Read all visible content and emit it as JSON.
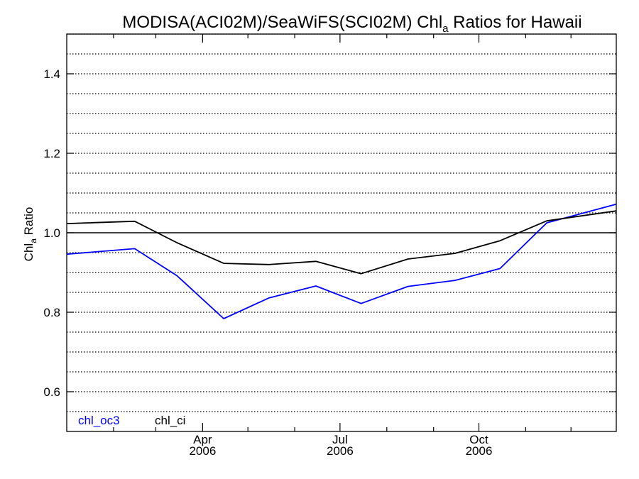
{
  "chart_data": {
    "type": "line",
    "title": {
      "main": "MODISA(ACI02M)/SeaWiFS(SCI02M)  Chl",
      "sub": "a",
      "rest": " Ratios for Hawaii"
    },
    "ylabel": {
      "main": "Chl",
      "sub": "a",
      "rest": " Ratio"
    },
    "xlabel": "",
    "xlim": [
      "2006-01-01",
      "2006-12-31"
    ],
    "ylim": [
      0.5,
      1.5
    ],
    "yticks": [
      0.6,
      0.8,
      1.0,
      1.2,
      1.4
    ],
    "ytick_labels": [
      "0.6",
      "0.8",
      "1.0",
      "1.2",
      "1.4"
    ],
    "xticks_major": [
      {
        "date": "2006-04-01",
        "month": "Apr",
        "year": "2006"
      },
      {
        "date": "2006-07-01",
        "month": "Jul",
        "year": "2006"
      },
      {
        "date": "2006-10-01",
        "month": "Oct",
        "year": "2006"
      }
    ],
    "xticks_minor": [
      "2006-02-01",
      "2006-03-01",
      "2006-05-01",
      "2006-06-01",
      "2006-08-01",
      "2006-09-01",
      "2006-11-01",
      "2006-12-01"
    ],
    "gridlines_y": [
      0.55,
      0.6,
      0.65,
      0.7,
      0.75,
      0.8,
      0.85,
      0.9,
      0.95,
      1.05,
      1.1,
      1.15,
      1.2,
      1.25,
      1.3,
      1.35,
      1.4,
      1.45,
      1.5
    ],
    "grid": "horizontal dotted",
    "reference_line": 1.0,
    "legend_placement": "bottom-left",
    "series": [
      {
        "name": "chl_oc3",
        "color": "#0000ff",
        "x": [
          "2006-01-01",
          "2006-02-15",
          "2006-03-15",
          "2006-04-15",
          "2006-05-15",
          "2006-06-15",
          "2006-07-15",
          "2006-08-15",
          "2006-09-15",
          "2006-10-15",
          "2006-11-15",
          "2006-12-31"
        ],
        "y": [
          0.946,
          0.96,
          0.892,
          0.784,
          0.836,
          0.866,
          0.822,
          0.865,
          0.88,
          0.91,
          1.025,
          1.072
        ]
      },
      {
        "name": "chl_ci",
        "color": "#000000",
        "x": [
          "2006-01-01",
          "2006-02-15",
          "2006-03-15",
          "2006-04-15",
          "2006-05-15",
          "2006-06-15",
          "2006-07-15",
          "2006-08-15",
          "2006-09-15",
          "2006-10-15",
          "2006-11-15",
          "2006-12-31"
        ],
        "y": [
          1.023,
          1.029,
          0.975,
          0.923,
          0.92,
          0.928,
          0.897,
          0.934,
          0.948,
          0.98,
          1.03,
          1.055
        ]
      }
    ]
  }
}
